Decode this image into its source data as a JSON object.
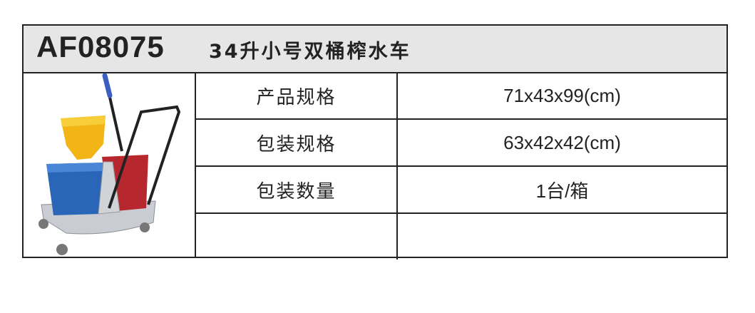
{
  "product": {
    "code": "AF08075",
    "name": "34升小号双桶榨水车",
    "image_icon": "mop-bucket-trolley-image"
  },
  "specs": [
    {
      "label": "产品规格",
      "value": "71x43x99(cm)"
    },
    {
      "label": "包装规格",
      "value": "63x42x42(cm)"
    },
    {
      "label": "包装数量",
      "value": "1台/箱"
    },
    {
      "label": "",
      "value": ""
    }
  ],
  "colors": {
    "header_bg": "#e6e6e6",
    "border": "#222222"
  }
}
